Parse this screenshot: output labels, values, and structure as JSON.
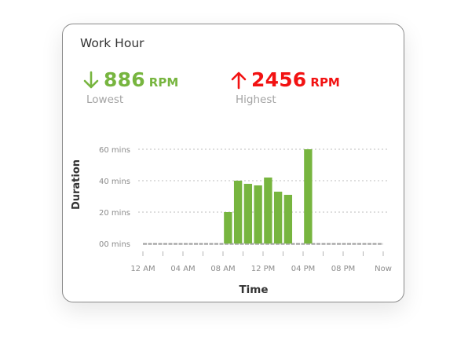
{
  "card": {
    "title": "Work Hour"
  },
  "stats": {
    "lowest": {
      "value": "886",
      "unit": "RPM",
      "label": "Lowest",
      "icon": "arrow-down-icon",
      "color": "#77b53f"
    },
    "highest": {
      "value": "2456",
      "unit": "RPM",
      "label": "Highest",
      "icon": "arrow-up-icon",
      "color": "#f21212"
    }
  },
  "chart_data": {
    "type": "bar",
    "xlabel": "Time",
    "ylabel": "Duration",
    "ylim": [
      0,
      60
    ],
    "y_ticks": [
      0,
      20,
      40,
      60
    ],
    "y_tick_labels": [
      "00 mins",
      "20 mins",
      "40 mins",
      "60 mins"
    ],
    "x_tick_labels": [
      "12 AM",
      "04 AM",
      "08 AM",
      "12 PM",
      "04 PM",
      "08 PM",
      "Now"
    ],
    "x_tick_hours": [
      0,
      4,
      8,
      12,
      16,
      20,
      24
    ],
    "grid": true,
    "bar_color": "#77b53f",
    "baseline_color": "#aaaaaa",
    "x_hours": [
      0,
      1,
      2,
      3,
      4,
      5,
      6,
      7,
      8,
      9,
      10,
      11,
      12,
      13,
      14,
      15,
      16,
      17,
      18,
      19,
      20,
      21,
      22,
      23
    ],
    "values": [
      0,
      0,
      0,
      0,
      0,
      0,
      0,
      0,
      20,
      40,
      38,
      37,
      42,
      33,
      31,
      0,
      60,
      0,
      0,
      0,
      0,
      0,
      0,
      0
    ]
  }
}
